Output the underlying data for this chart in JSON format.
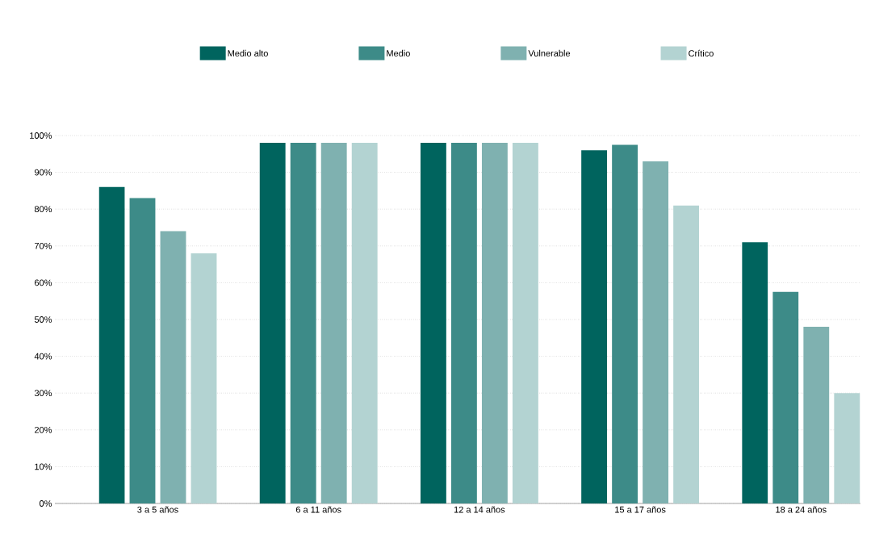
{
  "chart_data": {
    "type": "bar",
    "categories": [
      "3 a 5 años",
      "6 a 11 años",
      "12 a 14 años",
      "15 a 17 años",
      "18 a 24 años"
    ],
    "series": [
      {
        "name": "Medio alto",
        "color": "#00645e",
        "values": [
          86,
          98,
          98,
          96,
          71
        ]
      },
      {
        "name": "Medio",
        "color": "#3d8b88",
        "values": [
          83,
          98,
          98,
          97.5,
          57.5
        ]
      },
      {
        "name": "Vulnerable",
        "color": "#7fb1b0",
        "values": [
          74,
          98,
          98,
          93,
          48
        ]
      },
      {
        "name": "Crítico",
        "color": "#b3d3d2",
        "values": [
          68,
          98,
          98,
          81,
          30
        ]
      }
    ],
    "ylim": [
      0,
      100
    ],
    "yticks": [
      {
        "value": 0,
        "label": "0%"
      },
      {
        "value": 10,
        "label": "10%"
      },
      {
        "value": 20,
        "label": "20%"
      },
      {
        "value": 30,
        "label": "30%"
      },
      {
        "value": 40,
        "label": "40%"
      },
      {
        "value": 50,
        "label": "50%"
      },
      {
        "value": 60,
        "label": "60%"
      },
      {
        "value": 70,
        "label": "70%"
      },
      {
        "value": 80,
        "label": "80%"
      },
      {
        "value": 90,
        "label": "90%"
      },
      {
        "value": 100,
        "label": "100%"
      }
    ],
    "grid": "y",
    "legend": "top"
  }
}
